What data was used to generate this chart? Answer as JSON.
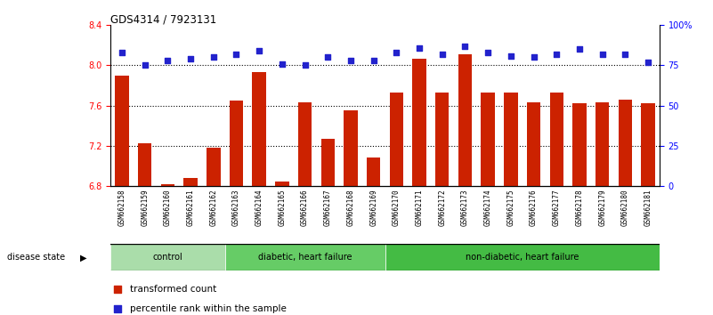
{
  "title": "GDS4314 / 7923131",
  "samples": [
    "GSM662158",
    "GSM662159",
    "GSM662160",
    "GSM662161",
    "GSM662162",
    "GSM662163",
    "GSM662164",
    "GSM662165",
    "GSM662166",
    "GSM662167",
    "GSM662168",
    "GSM662169",
    "GSM662170",
    "GSM662171",
    "GSM662172",
    "GSM662173",
    "GSM662174",
    "GSM662175",
    "GSM662176",
    "GSM662177",
    "GSM662178",
    "GSM662179",
    "GSM662180",
    "GSM662181"
  ],
  "bar_values": [
    7.9,
    7.22,
    6.82,
    6.88,
    7.18,
    7.65,
    7.93,
    6.84,
    7.63,
    7.27,
    7.55,
    7.08,
    7.73,
    8.07,
    7.73,
    8.11,
    7.73,
    7.73,
    7.63,
    7.73,
    7.62,
    7.63,
    7.66,
    7.62
  ],
  "percentile_values": [
    83,
    75,
    78,
    79,
    80,
    82,
    84,
    76,
    75,
    80,
    78,
    78,
    83,
    86,
    82,
    87,
    83,
    81,
    80,
    82,
    85,
    82,
    82,
    77
  ],
  "groups": [
    {
      "label": "control",
      "start": 0,
      "end": 4,
      "color": "#AADDAA"
    },
    {
      "label": "diabetic, heart failure",
      "start": 5,
      "end": 11,
      "color": "#66CC66"
    },
    {
      "label": "non-diabetic, heart failure",
      "start": 12,
      "end": 23,
      "color": "#44BB44"
    }
  ],
  "bar_color": "#CC2200",
  "dot_color": "#2222CC",
  "ymin": 6.8,
  "ymax": 8.4,
  "yticks": [
    6.8,
    7.2,
    7.6,
    8.0,
    8.4
  ],
  "y2ticks": [
    0,
    25,
    50,
    75,
    100
  ],
  "y2ticklabels": [
    "0",
    "25",
    "50",
    "75",
    "100%"
  ],
  "hlines": [
    8.0,
    7.6,
    7.2
  ],
  "legend_bar": "transformed count",
  "legend_dot": "percentile rank within the sample",
  "disease_state_label": "disease state"
}
